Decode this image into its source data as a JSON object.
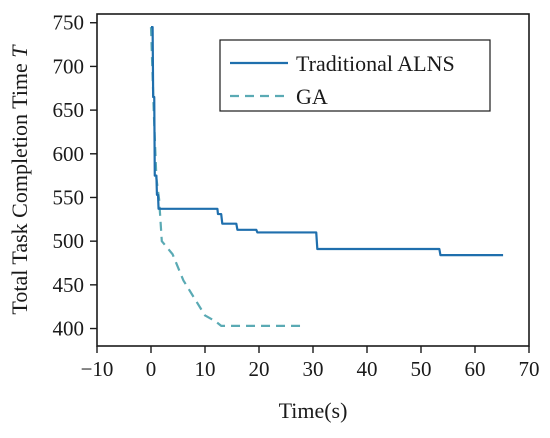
{
  "chart_data": {
    "type": "line",
    "title": "",
    "xlabel": "Time(s)",
    "ylabel_text": "Total Task Completion Time ",
    "ylabel_symbol": "T",
    "xlim": [
      -10,
      70
    ],
    "ylim": [
      380,
      760
    ],
    "xticks": [
      -10,
      0,
      10,
      20,
      30,
      40,
      50,
      60,
      70
    ],
    "yticks": [
      400,
      450,
      500,
      550,
      600,
      650,
      700,
      750
    ],
    "grid": false,
    "legend_position": "top-right",
    "series": [
      {
        "name": "Traditional ALNS",
        "color": "#1f6fad",
        "style": "solid",
        "points": [
          [
            0.0,
            745
          ],
          [
            0.3,
            745
          ],
          [
            0.4,
            665
          ],
          [
            0.6,
            665
          ],
          [
            0.7,
            575
          ],
          [
            1.0,
            575
          ],
          [
            1.1,
            553
          ],
          [
            1.3,
            553
          ],
          [
            1.4,
            537
          ],
          [
            12.3,
            537
          ],
          [
            12.4,
            531
          ],
          [
            13.0,
            531
          ],
          [
            13.2,
            520
          ],
          [
            15.8,
            520
          ],
          [
            16.0,
            513
          ],
          [
            19.5,
            513
          ],
          [
            19.7,
            510
          ],
          [
            30.6,
            510
          ],
          [
            30.8,
            491
          ],
          [
            53.4,
            491
          ],
          [
            53.6,
            484
          ],
          [
            65.2,
            484
          ]
        ]
      },
      {
        "name": "GA",
        "color": "#5aaab4",
        "style": "dashed",
        "points": [
          [
            0.0,
            745
          ],
          [
            0.5,
            650
          ],
          [
            1.0,
            572
          ],
          [
            1.5,
            548
          ],
          [
            2.0,
            500
          ],
          [
            4.0,
            485
          ],
          [
            6.0,
            455
          ],
          [
            8.0,
            435
          ],
          [
            10.0,
            415
          ],
          [
            12.0,
            408
          ],
          [
            13.0,
            403
          ],
          [
            15.0,
            403
          ],
          [
            20.0,
            403
          ],
          [
            25.0,
            403
          ],
          [
            28.0,
            403
          ]
        ]
      }
    ]
  }
}
